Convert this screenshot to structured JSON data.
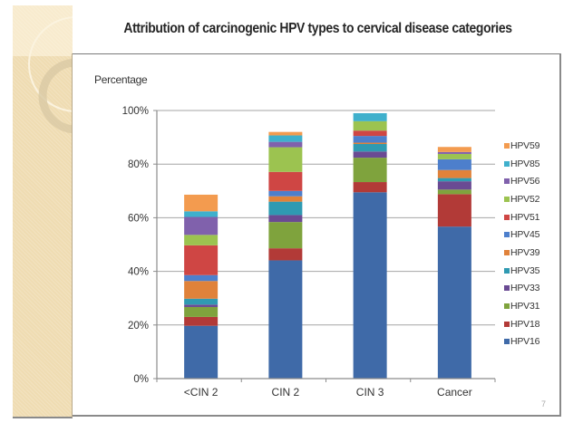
{
  "slide": {
    "title": "Attribution of carcinogenic HPV types to cervical disease categories",
    "page_number": "7"
  },
  "colors": {
    "HPV16": "#3f6aa8",
    "HPV18": "#b23a37",
    "HPV31": "#7fa33d",
    "HPV33": "#6a4a93",
    "HPV35": "#2f9ab2",
    "HPV39": "#e0823a",
    "HPV45": "#4d7fcc",
    "HPV51": "#cf4644",
    "HPV52": "#9cc350",
    "HPV56": "#8061ac",
    "HPV85": "#3fb0cc",
    "HPV59": "#f39b4f"
  },
  "chart_data": {
    "type": "bar",
    "stacked": true,
    "title": "Attribution of carcinogenic HPV types to cervical disease categories",
    "xlabel": "",
    "ylabel": "Percentage",
    "ylim": [
      0,
      100
    ],
    "yticks": [
      "0%",
      "20%",
      "40%",
      "60%",
      "80%",
      "100%"
    ],
    "grid": true,
    "legend_position": "right",
    "categories": [
      "<CIN 2",
      "CIN 2",
      "CIN 3",
      "Cancer"
    ],
    "series": [
      {
        "name": "HPV16",
        "values": [
          19.7,
          44.1,
          69.5,
          56.7
        ]
      },
      {
        "name": "HPV18",
        "values": [
          3.3,
          4.5,
          3.8,
          12.1
        ]
      },
      {
        "name": "HPV31",
        "values": [
          3.7,
          9.8,
          9.1,
          1.7
        ]
      },
      {
        "name": "HPV33",
        "values": [
          0.9,
          2.6,
          2.3,
          3.1
        ]
      },
      {
        "name": "HPV35",
        "values": [
          2.2,
          5.0,
          2.8,
          1.2
        ]
      },
      {
        "name": "HPV39",
        "values": [
          6.6,
          2.0,
          0.5,
          3.0
        ]
      },
      {
        "name": "HPV45",
        "values": [
          2.2,
          2.0,
          2.5,
          4.0
        ]
      },
      {
        "name": "HPV51",
        "values": [
          11.1,
          7.1,
          2.0,
          0.0
        ]
      },
      {
        "name": "HPV52",
        "values": [
          3.9,
          9.2,
          3.5,
          2.0
        ]
      },
      {
        "name": "HPV56",
        "values": [
          6.7,
          2.0,
          0.0,
          0.7
        ]
      },
      {
        "name": "HPV85",
        "values": [
          2.1,
          2.4,
          3.0,
          0.0
        ]
      },
      {
        "name": "HPV59",
        "values": [
          6.2,
          1.3,
          0.0,
          1.9
        ]
      }
    ],
    "legend_order": [
      "HPV59",
      "HPV85",
      "HPV56",
      "HPV52",
      "HPV51",
      "HPV45",
      "HPV39",
      "HPV35",
      "HPV33",
      "HPV31",
      "HPV18",
      "HPV16"
    ]
  }
}
